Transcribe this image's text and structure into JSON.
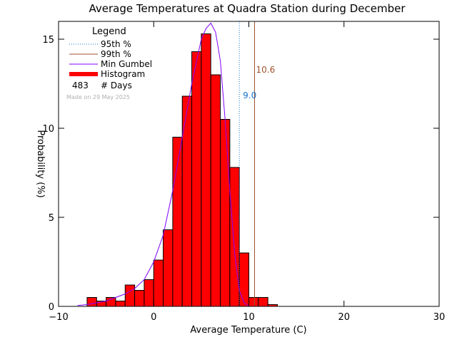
{
  "chart_data": {
    "type": "bar",
    "title": "Average Temperatures at Quadra Station during December",
    "xlabel": "Average Temperature (C)",
    "ylabel": "Probability (%)",
    "xlim": [
      -10,
      30
    ],
    "ylim": [
      0,
      16
    ],
    "x_ticks": [
      -10,
      0,
      10,
      20,
      30
    ],
    "y_ticks": [
      0,
      5,
      10,
      15
    ],
    "x_tick_labels": [
      "−10",
      "0",
      "10",
      "20",
      "30"
    ],
    "y_tick_labels": [
      "0",
      "5",
      "10",
      "15"
    ],
    "bin_width": 1,
    "bins": [
      {
        "x0": -7,
        "value": 0.5
      },
      {
        "x0": -6,
        "value": 0.3
      },
      {
        "x0": -5,
        "value": 0.5
      },
      {
        "x0": -4,
        "value": 0.3
      },
      {
        "x0": -3,
        "value": 1.2
      },
      {
        "x0": -2,
        "value": 0.9
      },
      {
        "x0": -1,
        "value": 1.5
      },
      {
        "x0": 0,
        "value": 2.6
      },
      {
        "x0": 1,
        "value": 4.3
      },
      {
        "x0": 2,
        "value": 9.5
      },
      {
        "x0": 3,
        "value": 11.8
      },
      {
        "x0": 4,
        "value": 14.3
      },
      {
        "x0": 5,
        "value": 15.3
      },
      {
        "x0": 6,
        "value": 13.0
      },
      {
        "x0": 7,
        "value": 10.5
      },
      {
        "x0": 8,
        "value": 7.8
      },
      {
        "x0": 9,
        "value": 3.0
      },
      {
        "x0": 10,
        "value": 0.5
      },
      {
        "x0": 11,
        "value": 0.5
      },
      {
        "x0": 12,
        "value": 0.1
      }
    ],
    "gumbel_curve": {
      "x": [
        -8,
        -7,
        -6,
        -5,
        -4,
        -3,
        -2,
        -1,
        0,
        1,
        2,
        3,
        4,
        5,
        5.5,
        6,
        6.5,
        7,
        7.5,
        8,
        8.5,
        9,
        9.5,
        10
      ],
      "y": [
        0.05,
        0.1,
        0.2,
        0.3,
        0.5,
        0.7,
        1.0,
        1.5,
        2.5,
        4.0,
        6.5,
        9.5,
        12.5,
        15.0,
        15.6,
        15.9,
        15.4,
        13.8,
        10.5,
        6.5,
        3.0,
        0.9,
        0.2,
        0.02
      ]
    },
    "percentiles": {
      "p95": {
        "value": 9.0,
        "label": "9.0",
        "color": "#1874cd"
      },
      "p99": {
        "value": 10.6,
        "label": "10.6",
        "color": "#a0522d"
      }
    },
    "legend": {
      "title": "Legend",
      "items": [
        {
          "label": "95th %",
          "style": "dotted",
          "color": "#1874cd"
        },
        {
          "label": "99th %",
          "style": "solid",
          "color": "#a0522d"
        },
        {
          "label": "Min Gumbel",
          "style": "solid",
          "color": "#8000ff"
        },
        {
          "label": "Histogram",
          "style": "thick",
          "color": "#ff0000"
        }
      ],
      "days_count": "483",
      "days_label": "# Days",
      "placement": "top-left"
    },
    "made_on": "Made on 29 May 2025",
    "colors": {
      "histogram": "#ff0000",
      "gumbel": "#8000ff",
      "p95": "#1874cd",
      "p99": "#a0522d",
      "made_on": "#b0b0b0"
    }
  }
}
